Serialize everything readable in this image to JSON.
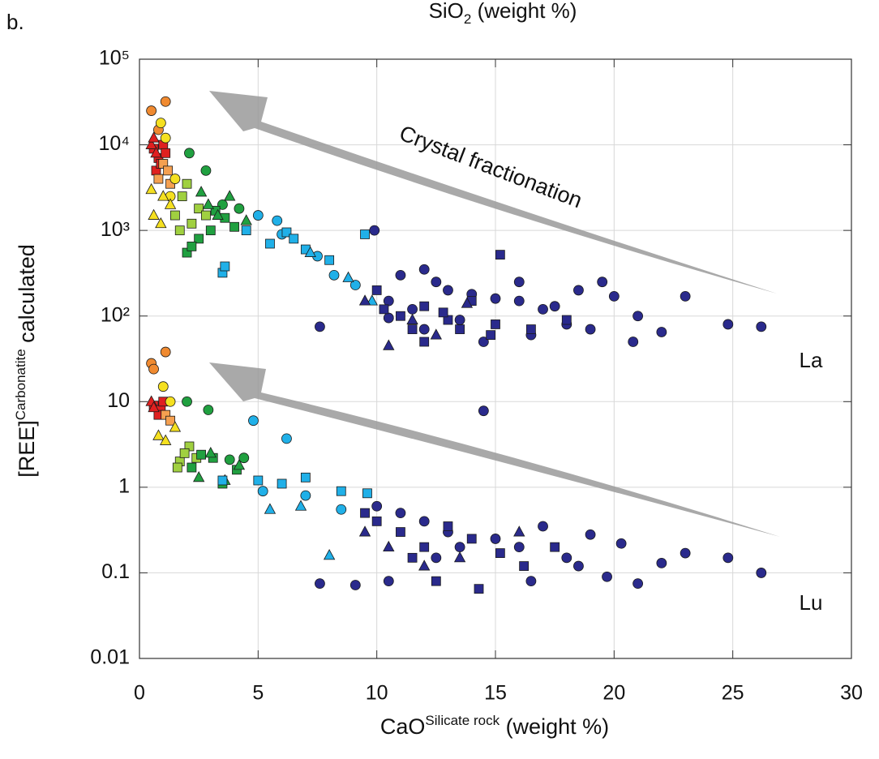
{
  "chart_data": {
    "type": "scatter",
    "panel_label": "b.",
    "top_axis_label": [
      "SiO",
      "2",
      " (weight %)"
    ],
    "xlabel": [
      "CaO",
      "Silicate rock",
      " (weight %)"
    ],
    "ylabel": [
      "[REE]",
      "Carbonatite",
      " calculated"
    ],
    "annotations": [
      "Crystal fractionation",
      "La",
      "Lu"
    ],
    "xlim": [
      0,
      30
    ],
    "xticks": [
      0,
      5,
      10,
      15,
      20,
      25,
      30
    ],
    "ylim": [
      0.01,
      100000
    ],
    "yscale": "log",
    "yticks": [
      0.01,
      0.1,
      1,
      10,
      {
        "value": 100,
        "label": "10²"
      },
      {
        "value": 1000,
        "label": "10³"
      },
      {
        "value": 10000,
        "label": "10⁴"
      },
      {
        "value": 100000,
        "label": "10⁵"
      }
    ],
    "grid": true,
    "series": [
      {
        "color": "#e02020",
        "marker": "square",
        "x": [
          0.6,
          0.8,
          1.0,
          0.7,
          1.1,
          0.9,
          0.6,
          0.9,
          1.0,
          0.8
        ],
        "values": [
          9000,
          7000,
          10000,
          5000,
          8000,
          6000,
          9,
          8,
          10,
          7
        ]
      },
      {
        "color": "#e02020",
        "marker": "triangle",
        "x": [
          0.5,
          0.6,
          0.7,
          0.5,
          0.6
        ],
        "values": [
          10000,
          12000,
          8000,
          10,
          8.5
        ]
      },
      {
        "color": "#f08a30",
        "marker": "circle",
        "x": [
          0.5,
          1.1,
          0.8,
          0.5,
          1.1,
          0.6
        ],
        "values": [
          25000,
          32000,
          15000,
          28,
          38,
          24
        ]
      },
      {
        "color": "#f5a050",
        "marker": "square",
        "x": [
          1.0,
          1.2,
          0.8,
          1.3,
          1.1,
          1.3
        ],
        "values": [
          6000,
          5000,
          4000,
          3500,
          7,
          6
        ]
      },
      {
        "color": "#f5e020",
        "marker": "circle",
        "x": [
          0.9,
          1.1,
          1.5,
          1.3,
          1.3,
          1.0
        ],
        "values": [
          18000,
          12000,
          4000,
          2500,
          10,
          15
        ]
      },
      {
        "color": "#f5e020",
        "marker": "triangle",
        "x": [
          0.6,
          0.9,
          1.3,
          0.5,
          1.0,
          0.8,
          1.1,
          1.5
        ],
        "values": [
          1500,
          1200,
          2000,
          3000,
          2500,
          4,
          3.5,
          5
        ]
      },
      {
        "color": "#a0d040",
        "marker": "square",
        "x": [
          1.8,
          2.0,
          1.5,
          2.5,
          2.2,
          1.7,
          2.8,
          1.7,
          2.1,
          1.9,
          2.4,
          1.6
        ],
        "values": [
          2500,
          3500,
          1500,
          1800,
          1200,
          1000,
          1500,
          2,
          3,
          2.5,
          2.2,
          1.7
        ]
      },
      {
        "color": "#20a040",
        "marker": "circle",
        "x": [
          2.1,
          2.8,
          3.5,
          4.2,
          2.0,
          2.9,
          3.8,
          4.4
        ],
        "values": [
          8000,
          5000,
          2000,
          1800,
          10,
          8,
          2.1,
          2.2
        ]
      },
      {
        "color": "#20a040",
        "marker": "square",
        "x": [
          2.0,
          3.0,
          2.5,
          3.6,
          4.0,
          2.2,
          3.2,
          2.2,
          3.1,
          3.5,
          2.6,
          4.1
        ],
        "values": [
          550,
          1000,
          800,
          1400,
          1100,
          650,
          1700,
          1.7,
          2.2,
          1.1,
          2.4,
          1.6
        ]
      },
      {
        "color": "#20a040",
        "marker": "triangle",
        "x": [
          2.6,
          3.3,
          4.5,
          3.8,
          2.9,
          2.5,
          3.0,
          4.2,
          3.6
        ],
        "values": [
          2800,
          1500,
          1300,
          2500,
          2000,
          1.3,
          2.5,
          1.8,
          1.2
        ]
      },
      {
        "color": "#20b0e8",
        "marker": "circle",
        "x": [
          5,
          6,
          7.5,
          8.2,
          9.1,
          5.8,
          4.8,
          6.2,
          5.2,
          7.0,
          8.5
        ],
        "values": [
          1500,
          900,
          500,
          300,
          230,
          1300,
          6,
          3.7,
          0.9,
          0.8,
          0.55
        ]
      },
      {
        "color": "#20b0e8",
        "marker": "square",
        "x": [
          3.5,
          5.5,
          6.2,
          7,
          8,
          9.5,
          6.5,
          4.5,
          3.6,
          3.5,
          5,
          6,
          7,
          8.5,
          9.6
        ],
        "values": [
          320,
          700,
          950,
          600,
          450,
          900,
          800,
          1000,
          380,
          1.2,
          1.2,
          1.1,
          1.3,
          0.9,
          0.85
        ]
      },
      {
        "color": "#20b0e8",
        "marker": "triangle",
        "x": [
          9.8,
          8.8,
          7.2,
          5.5,
          8.0,
          6.8
        ],
        "values": [
          150,
          280,
          550,
          0.55,
          0.16,
          0.6
        ]
      },
      {
        "color": "#2a2a8c",
        "marker": "circle",
        "x": [
          7.6,
          9.9,
          10.5,
          11,
          12,
          13,
          14,
          15,
          16,
          17,
          17.5,
          18.5,
          19.5,
          20,
          21,
          22,
          23,
          24.8,
          26.2,
          16,
          18,
          19,
          14.5,
          12.5,
          11.5,
          13.5,
          10.5,
          16.5,
          20.8,
          12,
          7.6,
          9.1,
          10.5,
          14.5,
          12,
          13,
          15,
          16,
          17,
          18,
          19,
          19.7,
          20.3,
          21,
          22,
          23,
          24.8,
          26.2,
          11,
          12.5,
          16.5,
          13.5,
          10,
          18.5
        ],
        "values": [
          75,
          1000,
          150,
          300,
          350,
          200,
          180,
          160,
          150,
          120,
          130,
          200,
          250,
          170,
          100,
          65,
          170,
          80,
          75,
          250,
          80,
          70,
          50,
          250,
          120,
          90,
          95,
          60,
          50,
          70,
          0.075,
          0.072,
          0.08,
          7.8,
          0.4,
          0.3,
          0.25,
          0.2,
          0.35,
          0.15,
          0.28,
          0.09,
          0.22,
          0.075,
          0.13,
          0.17,
          0.15,
          0.1,
          0.5,
          0.15,
          0.08,
          0.2,
          0.6,
          0.12
        ]
      },
      {
        "color": "#2a2a8c",
        "marker": "square",
        "x": [
          10,
          11,
          12,
          13,
          14,
          15.2,
          14.8,
          12.8,
          11.5,
          10.3,
          13.5,
          16.5,
          18,
          12,
          15,
          10,
          11,
          12,
          13,
          14,
          15.2,
          16.2,
          14.3,
          12.5,
          11.5,
          9.5,
          17.5
        ],
        "values": [
          200,
          100,
          130,
          90,
          150,
          520,
          60,
          110,
          70,
          120,
          70,
          70,
          90,
          50,
          80,
          0.4,
          0.3,
          0.2,
          0.35,
          0.25,
          0.17,
          0.12,
          0.065,
          0.08,
          0.15,
          0.5,
          0.2
        ]
      },
      {
        "color": "#2a2a8c",
        "marker": "triangle",
        "x": [
          9.5,
          10.5,
          11.5,
          12.5,
          13.8,
          9.5,
          10.5,
          12,
          13.5,
          16
        ],
        "values": [
          150,
          45,
          90,
          60,
          140,
          0.3,
          0.2,
          0.12,
          0.15,
          0.3
        ]
      }
    ]
  }
}
